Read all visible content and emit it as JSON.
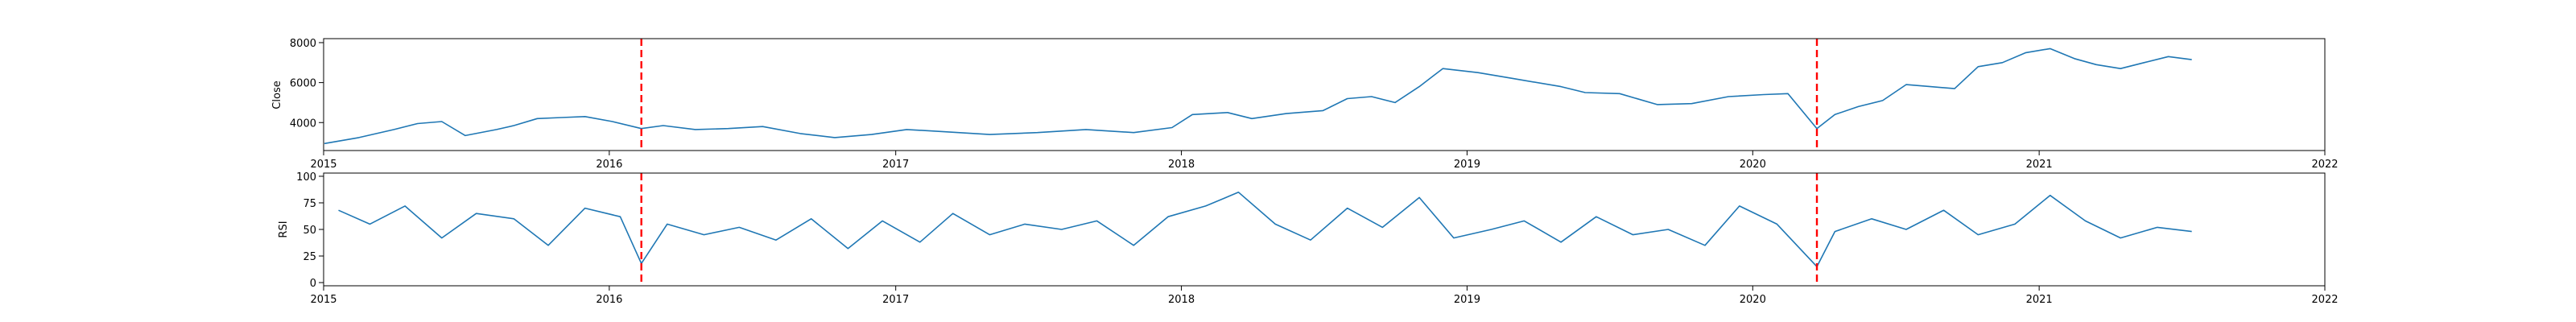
{
  "chart_data": [
    {
      "type": "line",
      "title": "",
      "xlabel": "",
      "ylabel": "Close",
      "x_ticks": [
        "2015",
        "2016",
        "2017",
        "2018",
        "2019",
        "2020",
        "2021",
        "2022"
      ],
      "xlim": [
        "2015-01-01",
        "2022-01-01"
      ],
      "y_ticks": [
        4000,
        6000,
        8000
      ],
      "ylim": [
        2600,
        8200
      ],
      "grid": false,
      "line_color": "#1f77b4",
      "event_color": "#ff0000",
      "event_dates": [
        "2016-02-11",
        "2020-03-23"
      ],
      "series": [
        {
          "x": [
            "2015-01-02",
            "2015-02-15",
            "2015-04-01",
            "2015-05-01",
            "2015-06-01",
            "2015-07-01",
            "2015-08-10",
            "2015-09-01",
            "2015-10-01",
            "2015-11-01",
            "2015-12-01",
            "2016-01-05",
            "2016-02-11",
            "2016-03-10",
            "2016-04-20",
            "2016-06-01",
            "2016-07-15",
            "2016-09-01",
            "2016-10-15",
            "2016-12-01",
            "2017-01-15",
            "2017-03-01",
            "2017-05-01",
            "2017-07-01",
            "2017-09-01",
            "2017-11-01",
            "2017-12-20",
            "2018-01-15",
            "2018-03-01",
            "2018-04-01",
            "2018-05-15",
            "2018-07-01",
            "2018-08-01",
            "2018-09-01",
            "2018-10-01",
            "2018-11-01",
            "2018-12-01",
            "2019-01-15",
            "2019-03-01",
            "2019-05-01",
            "2019-06-01",
            "2019-07-15",
            "2019-09-01",
            "2019-10-15",
            "2019-12-01",
            "2020-01-15",
            "2020-02-15",
            "2020-03-23",
            "2020-04-15",
            "2020-05-15",
            "2020-06-15",
            "2020-07-15",
            "2020-08-15",
            "2020-09-15",
            "2020-10-15",
            "2020-11-15",
            "2020-12-15",
            "2021-01-15",
            "2021-02-15",
            "2021-03-15",
            "2021-04-15",
            "2021-05-15",
            "2021-06-15",
            "2021-07-15"
          ],
          "y": [
            2950,
            3250,
            3650,
            3950,
            4050,
            3350,
            3650,
            3850,
            4200,
            4250,
            4300,
            4050,
            3700,
            3850,
            3650,
            3700,
            3800,
            3450,
            3250,
            3400,
            3650,
            3550,
            3400,
            3500,
            3650,
            3500,
            3750,
            4400,
            4500,
            4200,
            4450,
            4600,
            5200,
            5300,
            5000,
            5800,
            6700,
            6500,
            6200,
            5800,
            5500,
            5450,
            4900,
            4950,
            5300,
            5400,
            5450,
            3700,
            4400,
            4800,
            5100,
            5900,
            5800,
            5700,
            6800,
            7000,
            7500,
            7700,
            7200,
            6900,
            6700,
            7000,
            7300,
            7150
          ]
        }
      ]
    },
    {
      "type": "line",
      "title": "",
      "xlabel": "",
      "ylabel": "RSI",
      "x_ticks": [
        "2015",
        "2016",
        "2017",
        "2018",
        "2019",
        "2020",
        "2021",
        "2022"
      ],
      "xlim": [
        "2015-01-01",
        "2022-01-01"
      ],
      "y_ticks": [
        0,
        25,
        50,
        75,
        100
      ],
      "ylim": [
        -3,
        103
      ],
      "grid": false,
      "line_color": "#1f77b4",
      "event_color": "#ff0000",
      "event_dates": [
        "2016-02-11",
        "2020-03-23"
      ],
      "series": [
        {
          "x": [
            "2015-01-20",
            "2015-03-01",
            "2015-04-15",
            "2015-06-01",
            "2015-07-15",
            "2015-09-01",
            "2015-10-15",
            "2015-12-01",
            "2016-01-15",
            "2016-02-11",
            "2016-03-15",
            "2016-05-01",
            "2016-06-15",
            "2016-08-01",
            "2016-09-15",
            "2016-11-01",
            "2016-12-15",
            "2017-02-01",
            "2017-03-15",
            "2017-05-01",
            "2017-06-15",
            "2017-08-01",
            "2017-09-15",
            "2017-11-01",
            "2017-12-15",
            "2018-02-01",
            "2018-03-15",
            "2018-05-01",
            "2018-06-15",
            "2018-08-01",
            "2018-09-15",
            "2018-11-01",
            "2018-12-15",
            "2019-02-01",
            "2019-03-15",
            "2019-05-01",
            "2019-06-15",
            "2019-08-01",
            "2019-09-15",
            "2019-11-01",
            "2019-12-15",
            "2020-02-01",
            "2020-03-23",
            "2020-04-15",
            "2020-06-01",
            "2020-07-15",
            "2020-09-01",
            "2020-10-15",
            "2020-12-01",
            "2021-01-15",
            "2021-03-01",
            "2021-04-15",
            "2021-06-01",
            "2021-07-15"
          ],
          "y": [
            68,
            55,
            72,
            42,
            65,
            60,
            35,
            70,
            62,
            18,
            55,
            45,
            52,
            40,
            60,
            32,
            58,
            38,
            65,
            45,
            55,
            50,
            58,
            35,
            62,
            72,
            85,
            55,
            40,
            70,
            52,
            80,
            42,
            50,
            58,
            38,
            62,
            45,
            50,
            35,
            72,
            55,
            15,
            48,
            60,
            50,
            68,
            45,
            55,
            82,
            58,
            42,
            52,
            48
          ]
        }
      ]
    }
  ]
}
